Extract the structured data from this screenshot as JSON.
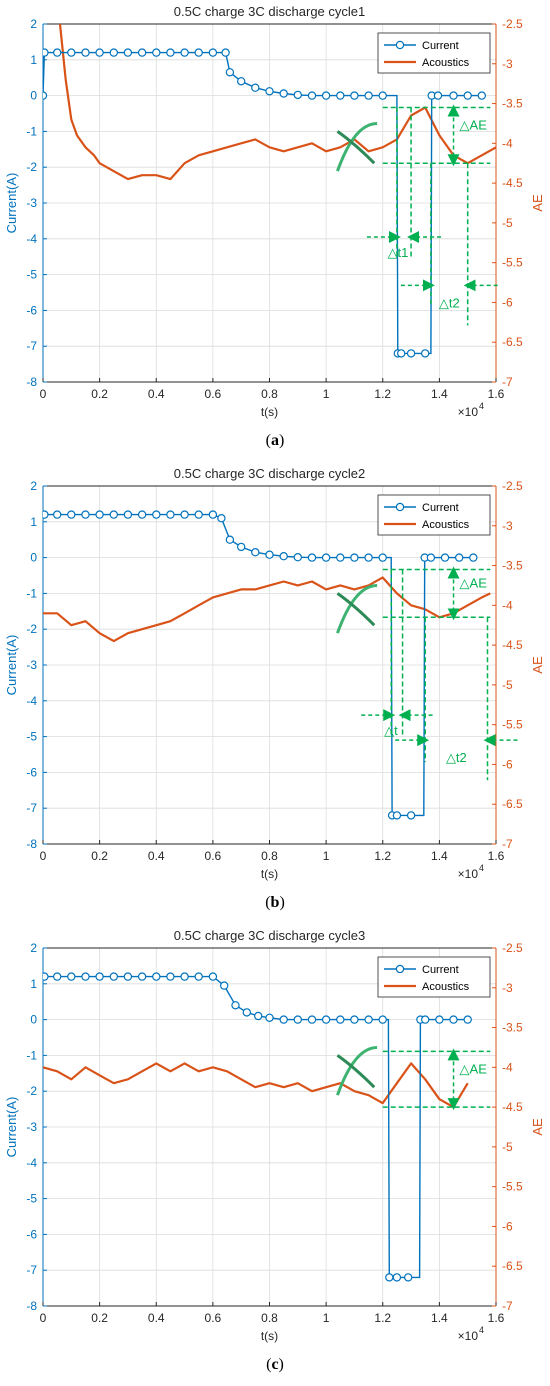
{
  "colors": {
    "current": "#0072BD",
    "acoustics": "#D95319",
    "annotation": "#00B050",
    "grid": "#dcdcdc"
  },
  "chart_data": [
    {
      "type": "line",
      "title": "0.5C charge 3C discharge cycle1",
      "caption_letter": "a",
      "xlabel": "t(s)",
      "x_exponent_label": "×10",
      "x_exponent_power": "4",
      "ylabel_left": "Current(A)",
      "ylabel_right": "AE",
      "xlim": [
        0,
        1.6
      ],
      "ylim_left": [
        -8,
        2
      ],
      "ylim_right": [
        -7,
        -2.5
      ],
      "xticks": [
        "0",
        "0.2",
        "0.4",
        "0.6",
        "0.8",
        "1",
        "1.2",
        "1.4",
        "1.6"
      ],
      "yticks_left": [
        "2",
        "1",
        "0",
        "-1",
        "-2",
        "-3",
        "-4",
        "-5",
        "-6",
        "-7",
        "-8"
      ],
      "yticks_right": [
        "-2.5",
        "-3",
        "-3.5",
        "-4",
        "-4.5",
        "-5",
        "-5.5",
        "-6",
        "-6.5",
        "-7"
      ],
      "grid": true,
      "legend_position": "top-right",
      "series": [
        {
          "name": "Current",
          "marker": "circle",
          "x": [
            0,
            0.005,
            0.05,
            0.1,
            0.15,
            0.2,
            0.25,
            0.3,
            0.35,
            0.4,
            0.45,
            0.5,
            0.55,
            0.6,
            0.645,
            0.66,
            0.7,
            0.75,
            0.8,
            0.85,
            0.9,
            0.95,
            1.0,
            1.05,
            1.1,
            1.15,
            1.2,
            1.25,
            1.253,
            1.265,
            1.3,
            1.35,
            1.37,
            1.373,
            1.395,
            1.45,
            1.5,
            1.55
          ],
          "y": [
            0,
            1.2,
            1.2,
            1.2,
            1.2,
            1.2,
            1.2,
            1.2,
            1.2,
            1.2,
            1.2,
            1.2,
            1.2,
            1.2,
            1.2,
            0.65,
            0.4,
            0.22,
            0.12,
            0.06,
            0.02,
            0,
            0,
            0,
            0,
            0,
            0,
            0,
            -7.2,
            -7.2,
            -7.2,
            -7.2,
            -7.2,
            0,
            0,
            0,
            0,
            0
          ]
        },
        {
          "name": "Acoustics",
          "x": [
            0.06,
            0.08,
            0.1,
            0.12,
            0.15,
            0.18,
            0.2,
            0.25,
            0.3,
            0.35,
            0.4,
            0.45,
            0.5,
            0.55,
            0.6,
            0.65,
            0.7,
            0.75,
            0.8,
            0.85,
            0.9,
            0.95,
            1.0,
            1.05,
            1.1,
            1.15,
            1.2,
            1.25,
            1.3,
            1.35,
            1.4,
            1.45,
            1.5,
            1.55,
            1.6
          ],
          "y": [
            -2.5,
            -3.2,
            -3.7,
            -3.9,
            -4.05,
            -4.15,
            -4.25,
            -4.35,
            -4.45,
            -4.4,
            -4.4,
            -4.45,
            -4.25,
            -4.15,
            -4.1,
            -4.05,
            -4.0,
            -3.95,
            -4.05,
            -4.1,
            -4.05,
            -4.0,
            -4.1,
            -4.05,
            -3.95,
            -4.1,
            -4.05,
            -3.95,
            -3.65,
            -3.55,
            -3.9,
            -4.15,
            -4.25,
            -4.15,
            -4.05
          ]
        }
      ],
      "annotations": {
        "delta_ae": "△AE",
        "delta_t1": "△t1",
        "delta_t2": "△t2"
      }
    },
    {
      "type": "line",
      "title": "0.5C charge 3C discharge cycle2",
      "caption_letter": "b",
      "xlabel": "t(s)",
      "x_exponent_label": "×10",
      "x_exponent_power": "4",
      "ylabel_left": "Current(A)",
      "ylabel_right": "AE",
      "xlim": [
        0,
        1.6
      ],
      "ylim_left": [
        -8,
        2
      ],
      "ylim_right": [
        -7,
        -2.5
      ],
      "xticks": [
        "0",
        "0.2",
        "0.4",
        "0.6",
        "0.8",
        "1",
        "1.2",
        "1.4",
        "1.6"
      ],
      "yticks_left": [
        "2",
        "1",
        "0",
        "-1",
        "-2",
        "-3",
        "-4",
        "-5",
        "-6",
        "-7",
        "-8"
      ],
      "yticks_right": [
        "-2.5",
        "-3",
        "-3.5",
        "-4",
        "-4.5",
        "-5",
        "-5.5",
        "-6",
        "-6.5",
        "-7"
      ],
      "grid": true,
      "legend_position": "top-right",
      "series": [
        {
          "name": "Current",
          "marker": "circle",
          "x": [
            0.005,
            0.05,
            0.1,
            0.15,
            0.2,
            0.25,
            0.3,
            0.35,
            0.4,
            0.45,
            0.5,
            0.55,
            0.6,
            0.63,
            0.66,
            0.7,
            0.75,
            0.8,
            0.85,
            0.9,
            0.95,
            1.0,
            1.05,
            1.1,
            1.15,
            1.2,
            1.23,
            1.233,
            1.25,
            1.3,
            1.345,
            1.348,
            1.37,
            1.42,
            1.47,
            1.52
          ],
          "y": [
            1.2,
            1.2,
            1.2,
            1.2,
            1.2,
            1.2,
            1.2,
            1.2,
            1.2,
            1.2,
            1.2,
            1.2,
            1.2,
            1.1,
            0.5,
            0.3,
            0.15,
            0.08,
            0.04,
            0.01,
            0,
            0,
            0,
            0,
            0,
            0,
            0,
            -7.2,
            -7.2,
            -7.2,
            -7.2,
            0,
            0,
            0,
            0,
            0
          ]
        },
        {
          "name": "Acoustics",
          "x": [
            0.0,
            0.05,
            0.1,
            0.15,
            0.2,
            0.25,
            0.3,
            0.35,
            0.4,
            0.45,
            0.5,
            0.55,
            0.6,
            0.65,
            0.7,
            0.75,
            0.8,
            0.85,
            0.9,
            0.95,
            1.0,
            1.05,
            1.1,
            1.15,
            1.2,
            1.25,
            1.3,
            1.35,
            1.4,
            1.45,
            1.5,
            1.55,
            1.58
          ],
          "y": [
            -4.1,
            -4.1,
            -4.25,
            -4.2,
            -4.35,
            -4.45,
            -4.35,
            -4.3,
            -4.25,
            -4.2,
            -4.1,
            -4.0,
            -3.9,
            -3.85,
            -3.8,
            -3.8,
            -3.75,
            -3.7,
            -3.75,
            -3.7,
            -3.8,
            -3.75,
            -3.8,
            -3.75,
            -3.65,
            -3.85,
            -4.0,
            -4.05,
            -4.15,
            -4.1,
            -4.0,
            -3.9,
            -3.85
          ]
        }
      ],
      "annotations": {
        "delta_ae": "△AE",
        "delta_t1": "△t",
        "delta_t2": "△t2"
      }
    },
    {
      "type": "line",
      "title": "0.5C charge 3C discharge cycle3",
      "caption_letter": "c",
      "xlabel": "t(s)",
      "x_exponent_label": "×10",
      "x_exponent_power": "4",
      "ylabel_left": "Current(A)",
      "ylabel_right": "AE",
      "xlim": [
        0,
        1.6
      ],
      "ylim_left": [
        -8,
        2
      ],
      "ylim_right": [
        -7,
        -2.5
      ],
      "xticks": [
        "0",
        "0.2",
        "0.4",
        "0.6",
        "0.8",
        "1",
        "1.2",
        "1.4",
        "1.6"
      ],
      "yticks_left": [
        "2",
        "1",
        "0",
        "-1",
        "-2",
        "-3",
        "-4",
        "-5",
        "-6",
        "-7",
        "-8"
      ],
      "yticks_right": [
        "-2.5",
        "-3",
        "-3.5",
        "-4",
        "-4.5",
        "-5",
        "-5.5",
        "-6",
        "-6.5",
        "-7"
      ],
      "grid": true,
      "legend_position": "top-right",
      "series": [
        {
          "name": "Current",
          "marker": "circle",
          "x": [
            0.005,
            0.05,
            0.1,
            0.15,
            0.2,
            0.25,
            0.3,
            0.35,
            0.4,
            0.45,
            0.5,
            0.55,
            0.6,
            0.64,
            0.68,
            0.72,
            0.76,
            0.8,
            0.85,
            0.9,
            0.95,
            1.0,
            1.05,
            1.1,
            1.15,
            1.2,
            1.22,
            1.223,
            1.25,
            1.29,
            1.33,
            1.333,
            1.35,
            1.4,
            1.45,
            1.5
          ],
          "y": [
            1.2,
            1.2,
            1.2,
            1.2,
            1.2,
            1.2,
            1.2,
            1.2,
            1.2,
            1.2,
            1.2,
            1.2,
            1.2,
            0.95,
            0.4,
            0.2,
            0.1,
            0.05,
            0,
            0,
            0,
            0,
            0,
            0,
            0,
            0,
            0,
            -7.2,
            -7.2,
            -7.2,
            -7.2,
            0,
            0,
            0,
            0,
            0
          ]
        },
        {
          "name": "Acoustics",
          "x": [
            0.0,
            0.05,
            0.1,
            0.15,
            0.2,
            0.25,
            0.3,
            0.35,
            0.4,
            0.45,
            0.5,
            0.55,
            0.6,
            0.65,
            0.7,
            0.75,
            0.8,
            0.85,
            0.9,
            0.95,
            1.0,
            1.05,
            1.1,
            1.15,
            1.2,
            1.25,
            1.3,
            1.35,
            1.4,
            1.45,
            1.5
          ],
          "y": [
            -4.0,
            -4.05,
            -4.15,
            -4.0,
            -4.1,
            -4.2,
            -4.15,
            -4.05,
            -3.95,
            -4.05,
            -3.95,
            -4.05,
            -4.0,
            -4.05,
            -4.15,
            -4.25,
            -4.2,
            -4.25,
            -4.2,
            -4.3,
            -4.25,
            -4.2,
            -4.3,
            -4.35,
            -4.45,
            -4.2,
            -3.95,
            -4.15,
            -4.4,
            -4.5,
            -4.2
          ]
        }
      ],
      "annotations": {
        "delta_ae": "△AE"
      }
    }
  ]
}
